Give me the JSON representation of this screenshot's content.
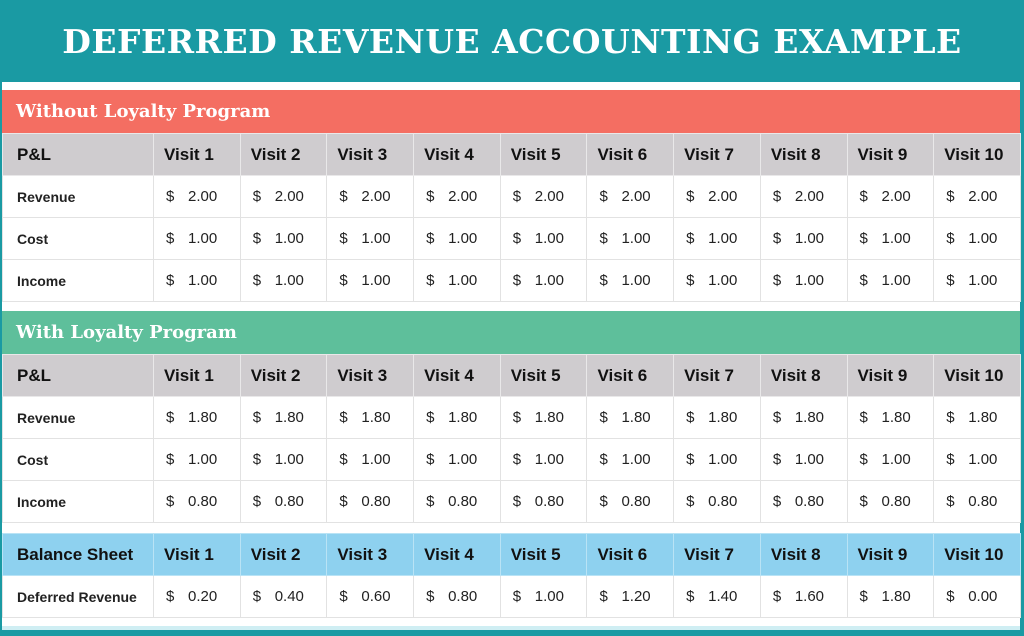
{
  "title": "DEFERRED REVENUE ACCOUNTING EXAMPLE",
  "colors": {
    "teal": "#1a9aa3",
    "red": "#f46e62",
    "green": "#5ebf9b",
    "blue": "#8ed1ef",
    "gray": "#cfcccf"
  },
  "without": {
    "heading": "Without Loyalty Program",
    "header": [
      "P&L",
      "Visit 1",
      "Visit 2",
      "Visit 3",
      "Visit 4",
      "Visit 5",
      "Visit 6",
      "Visit 7",
      "Visit 8",
      "Visit 9",
      "Visit 10"
    ],
    "rows": [
      {
        "label": "Revenue",
        "values": [
          "2.00",
          "2.00",
          "2.00",
          "2.00",
          "2.00",
          "2.00",
          "2.00",
          "2.00",
          "2.00",
          "2.00"
        ]
      },
      {
        "label": "Cost",
        "values": [
          "1.00",
          "1.00",
          "1.00",
          "1.00",
          "1.00",
          "1.00",
          "1.00",
          "1.00",
          "1.00",
          "1.00"
        ]
      },
      {
        "label": "Income",
        "values": [
          "1.00",
          "1.00",
          "1.00",
          "1.00",
          "1.00",
          "1.00",
          "1.00",
          "1.00",
          "1.00",
          "1.00"
        ]
      }
    ]
  },
  "with": {
    "heading": "With Loyalty Program",
    "header": [
      "P&L",
      "Visit 1",
      "Visit 2",
      "Visit 3",
      "Visit 4",
      "Visit 5",
      "Visit 6",
      "Visit 7",
      "Visit 8",
      "Visit 9",
      "Visit 10"
    ],
    "rows": [
      {
        "label": "Revenue",
        "values": [
          "1.80",
          "1.80",
          "1.80",
          "1.80",
          "1.80",
          "1.80",
          "1.80",
          "1.80",
          "1.80",
          "1.80"
        ]
      },
      {
        "label": "Cost",
        "values": [
          "1.00",
          "1.00",
          "1.00",
          "1.00",
          "1.00",
          "1.00",
          "1.00",
          "1.00",
          "1.00",
          "1.00"
        ]
      },
      {
        "label": "Income",
        "values": [
          "0.80",
          "0.80",
          "0.80",
          "0.80",
          "0.80",
          "0.80",
          "0.80",
          "0.80",
          "0.80",
          "0.80"
        ]
      }
    ]
  },
  "balance": {
    "header": [
      "Balance Sheet",
      "Visit 1",
      "Visit 2",
      "Visit 3",
      "Visit 4",
      "Visit 5",
      "Visit 6",
      "Visit 7",
      "Visit 8",
      "Visit 9",
      "Visit 10"
    ],
    "rows": [
      {
        "label": "Deferred Revenue",
        "values": [
          "0.20",
          "0.40",
          "0.60",
          "0.80",
          "1.00",
          "1.20",
          "1.40",
          "1.60",
          "1.80",
          "0.00"
        ]
      }
    ]
  },
  "currency": "$"
}
